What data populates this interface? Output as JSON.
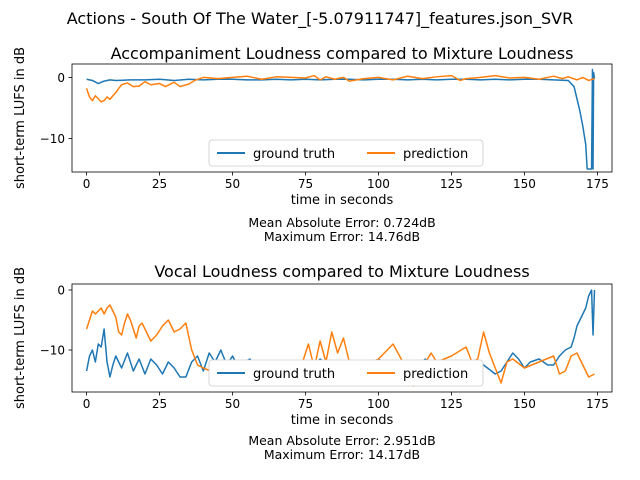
{
  "figure": {
    "suptitle": "Actions - South Of The Water_[-5.07911747]_features.json_SVR"
  },
  "chart_data": [
    {
      "type": "line",
      "title": "Accompaniment Loudness compared to Mixture Loudness",
      "xlabel": "time in seconds",
      "ylabel": "short-term LUFS in dB",
      "xlim": [
        -5,
        180
      ],
      "ylim": [
        -15.5,
        2.2
      ],
      "xticks": [
        0,
        25,
        50,
        75,
        100,
        125,
        150,
        175
      ],
      "yticks": [
        0,
        -10
      ],
      "ytick_labels": [
        "0",
        "−10"
      ],
      "legend": {
        "position": "lower-center",
        "entries": [
          "ground truth",
          "prediction"
        ]
      },
      "notes": [
        "Mean Absolute Error: 0.724dB",
        "Maximum Error: 14.76dB"
      ],
      "series": [
        {
          "name": "ground truth",
          "color": "#1f77b4",
          "x": [
            0,
            2,
            4,
            6,
            8,
            10,
            15,
            20,
            25,
            30,
            35,
            40,
            45,
            50,
            55,
            60,
            65,
            70,
            75,
            80,
            85,
            90,
            95,
            100,
            105,
            110,
            115,
            120,
            125,
            130,
            135,
            140,
            145,
            150,
            155,
            160,
            165,
            167,
            168,
            169,
            170,
            171,
            171.5,
            172,
            172.5,
            173,
            173.3,
            173.5,
            173.7,
            174
          ],
          "y": [
            -0.3,
            -0.5,
            -1.0,
            -0.6,
            -0.4,
            -0.5,
            -0.4,
            -0.4,
            -0.3,
            -0.5,
            -0.3,
            -0.4,
            -0.3,
            -0.3,
            -0.4,
            -0.4,
            -0.3,
            -0.4,
            -0.3,
            -0.4,
            -0.3,
            -0.3,
            -0.4,
            -0.3,
            -0.3,
            -0.4,
            -0.3,
            -0.4,
            -0.3,
            -0.3,
            -0.4,
            -0.3,
            -0.4,
            -0.3,
            -0.3,
            -0.4,
            -0.5,
            -1.5,
            -3.5,
            -5.5,
            -8.0,
            -11.0,
            -15.0,
            -15.0,
            -15.0,
            -15.0,
            1.3,
            -15.0,
            0.8,
            -0.2
          ]
        },
        {
          "name": "prediction",
          "color": "#ff7f0e",
          "x": [
            0,
            1,
            2,
            3,
            4,
            5,
            6,
            7,
            8,
            9,
            10,
            11,
            12,
            14,
            16,
            18,
            20,
            22,
            25,
            27,
            30,
            32,
            35,
            37,
            40,
            45,
            50,
            55,
            60,
            65,
            70,
            75,
            78,
            80,
            82,
            85,
            88,
            90,
            95,
            100,
            105,
            110,
            115,
            120,
            125,
            128,
            130,
            135,
            140,
            145,
            150,
            155,
            160,
            163,
            165,
            168,
            170,
            172,
            174
          ],
          "y": [
            -1.8,
            -3.2,
            -3.8,
            -3.0,
            -3.5,
            -4.0,
            -3.8,
            -3.2,
            -3.6,
            -3.0,
            -2.5,
            -1.8,
            -1.2,
            -0.9,
            -1.5,
            -1.4,
            -0.7,
            -1.2,
            -1.0,
            -1.5,
            -0.8,
            -1.5,
            -1.1,
            -0.5,
            0.0,
            -0.2,
            0.0,
            0.2,
            -0.3,
            0.1,
            0.0,
            -0.1,
            0.3,
            -0.4,
            0.1,
            -0.3,
            0.0,
            -0.6,
            -0.2,
            0.0,
            -0.4,
            0.2,
            -0.2,
            0.1,
            0.3,
            -0.5,
            -0.2,
            0.0,
            0.3,
            -0.1,
            0.0,
            -0.3,
            0.2,
            -0.2,
            0.1,
            -0.4,
            0.0,
            -0.5,
            -0.2
          ]
        }
      ]
    },
    {
      "type": "line",
      "title": "Vocal Loudness compared to Mixture Loudness",
      "xlabel": "time in seconds",
      "ylabel": "short-term LUFS in dB",
      "xlim": [
        -5,
        180
      ],
      "ylim": [
        -17,
        1
      ],
      "xticks": [
        0,
        25,
        50,
        75,
        100,
        125,
        150,
        175
      ],
      "yticks": [
        0,
        -10
      ],
      "ytick_labels": [
        "0",
        "−10"
      ],
      "legend": {
        "position": "lower-center",
        "entries": [
          "ground truth",
          "prediction"
        ]
      },
      "notes": [
        "Mean Absolute Error: 2.951dB",
        "Maximum Error: 14.17dB"
      ],
      "series": [
        {
          "name": "ground truth",
          "color": "#1f77b4",
          "x": [
            0,
            1,
            2,
            3,
            4,
            5,
            6,
            7,
            8,
            9,
            10,
            12,
            14,
            16,
            18,
            20,
            22,
            24,
            26,
            28,
            30,
            32,
            34,
            36,
            38,
            40,
            42,
            44,
            46,
            48,
            50,
            52,
            54,
            56,
            58,
            60,
            63,
            66,
            70,
            73,
            76,
            80,
            84,
            88,
            92,
            96,
            100,
            104,
            108,
            112,
            116,
            120,
            124,
            128,
            132,
            136,
            140,
            142,
            144,
            146,
            148,
            150,
            152,
            155,
            158,
            160,
            162,
            164,
            166,
            167,
            168,
            169,
            170,
            171,
            172,
            173,
            173.5,
            174
          ],
          "y": [
            -13.5,
            -11.0,
            -10.0,
            -12.0,
            -9.0,
            -9.5,
            -6.5,
            -12.0,
            -14.5,
            -12.5,
            -11.0,
            -13.0,
            -10.5,
            -13.5,
            -11.5,
            -14.0,
            -11.5,
            -12.5,
            -14.0,
            -12.0,
            -13.0,
            -14.5,
            -14.5,
            -12.0,
            -11.0,
            -13.5,
            -10.5,
            -12.0,
            -10.0,
            -12.5,
            -11.0,
            -13.0,
            -12.0,
            -11.5,
            -13.5,
            -12.0,
            -13.0,
            -12.5,
            -13.5,
            -12.0,
            -13.5,
            -11.5,
            -13.0,
            -12.0,
            -14.0,
            -12.5,
            -11.5,
            -13.0,
            -12.0,
            -13.5,
            -11.5,
            -13.0,
            -12.0,
            -14.0,
            -13.0,
            -12.5,
            -14.0,
            -13.5,
            -12.0,
            -10.5,
            -11.5,
            -13.0,
            -12.0,
            -11.5,
            -12.5,
            -12.5,
            -11.0,
            -10.0,
            -9.5,
            -8.0,
            -6.0,
            -5.0,
            -4.0,
            -3.0,
            -1.0,
            0.0,
            -7.5,
            0.0
          ]
        },
        {
          "name": "prediction",
          "color": "#ff7f0e",
          "x": [
            0,
            1,
            2,
            3,
            4,
            5,
            6,
            7,
            8,
            9,
            10,
            11,
            12,
            13,
            14,
            15,
            16,
            17,
            18,
            19,
            20,
            22,
            24,
            26,
            28,
            30,
            32,
            34,
            36,
            38,
            40,
            45,
            50,
            55,
            60,
            65,
            70,
            74,
            76,
            78,
            80,
            82,
            84,
            86,
            88,
            90,
            95,
            100,
            105,
            110,
            112,
            115,
            118,
            120,
            125,
            130,
            132,
            134,
            136,
            138,
            140,
            142,
            144,
            146,
            150,
            155,
            160,
            162,
            164,
            166,
            168,
            170,
            172,
            174
          ],
          "y": [
            -6.5,
            -5.0,
            -3.5,
            -4.0,
            -3.5,
            -3.0,
            -4.0,
            -3.0,
            -2.5,
            -3.5,
            -4.5,
            -7.0,
            -7.5,
            -5.5,
            -4.0,
            -5.0,
            -6.5,
            -8.0,
            -6.0,
            -5.5,
            -6.5,
            -8.5,
            -7.5,
            -6.0,
            -5.0,
            -7.0,
            -6.5,
            -5.5,
            -10.0,
            -12.5,
            -13.0,
            -14.0,
            -13.5,
            -14.5,
            -13.0,
            -14.0,
            -13.5,
            -12.0,
            -9.0,
            -13.0,
            -8.5,
            -12.0,
            -7.0,
            -10.5,
            -8.0,
            -12.0,
            -13.0,
            -11.5,
            -9.0,
            -13.5,
            -16.0,
            -13.0,
            -10.5,
            -12.0,
            -11.0,
            -9.5,
            -12.0,
            -11.5,
            -7.0,
            -10.5,
            -13.0,
            -15.5,
            -12.0,
            -11.5,
            -13.0,
            -12.0,
            -11.0,
            -14.0,
            -13.5,
            -11.0,
            -10.5,
            -12.5,
            -14.5,
            -14.0
          ]
        }
      ]
    }
  ]
}
